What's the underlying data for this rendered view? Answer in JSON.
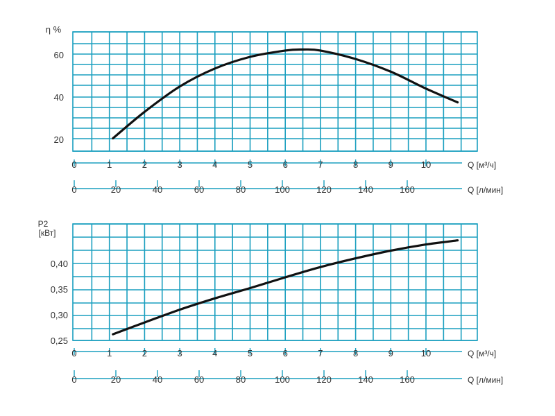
{
  "chart_data": [
    {
      "type": "line",
      "ylabel": "η %",
      "x_axes": [
        {
          "label": "Q [м³/ч]",
          "ticks": [
            "0",
            "1",
            "2",
            "3",
            "4",
            "5",
            "6",
            "7",
            "8",
            "9",
            "10"
          ]
        },
        {
          "label": "Q [л/мин]",
          "ticks": [
            "0",
            "20",
            "40",
            "60",
            "80",
            "100",
            "120",
            "140",
            "160"
          ]
        }
      ],
      "yticks": [
        "20",
        "40",
        "60"
      ],
      "xlim": [
        0,
        11.5
      ],
      "ylim": [
        14,
        70
      ],
      "grid": true,
      "series": [
        {
          "x": [
            1.1,
            2,
            3,
            4,
            5,
            6,
            6.5,
            7,
            8,
            9,
            10,
            10.9
          ],
          "values": [
            20.5,
            33,
            45,
            53.5,
            59,
            62,
            62.5,
            62,
            58,
            52,
            44,
            37.5
          ]
        }
      ]
    },
    {
      "type": "line",
      "ylabel": "P2 [кВт]",
      "x_axes": [
        {
          "label": "Q [м³/ч]",
          "ticks": [
            "0",
            "1",
            "2",
            "3",
            "4",
            "5",
            "6",
            "7",
            "8",
            "9",
            "10"
          ]
        },
        {
          "label": "Q [л/мин]",
          "ticks": [
            "0",
            "20",
            "40",
            "60",
            "80",
            "100",
            "120",
            "140",
            "160"
          ]
        }
      ],
      "yticks": [
        "0,25",
        "0,30",
        "0,35",
        "0,40"
      ],
      "xlim": [
        0,
        11.5
      ],
      "ylim": [
        0.25,
        0.48
      ],
      "grid": true,
      "series": [
        {
          "x": [
            1.1,
            2,
            3,
            4,
            5,
            6,
            7,
            8,
            9,
            10,
            10.9
          ],
          "values": [
            0.262,
            0.285,
            0.31,
            0.332,
            0.352,
            0.373,
            0.393,
            0.41,
            0.425,
            0.437,
            0.445
          ]
        }
      ]
    }
  ]
}
